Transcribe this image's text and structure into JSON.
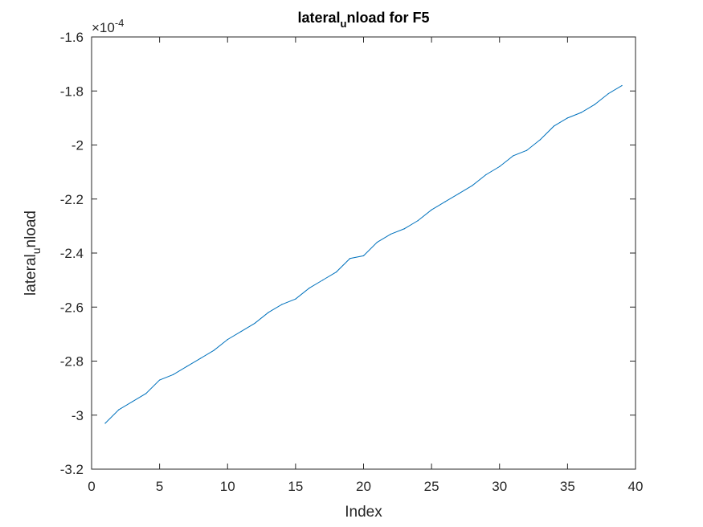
{
  "chart_data": {
    "type": "line",
    "title_main": "lateral",
    "title_sub": "u",
    "title_rest": "nload for F5",
    "xlabel": "Index",
    "ylabel_main": "lateral",
    "ylabel_sub": "u",
    "ylabel_rest": "nload",
    "exponent_base": "×10",
    "exponent_power": "-4",
    "xlim": [
      0,
      40
    ],
    "ylim": [
      -3.2,
      -1.6
    ],
    "xticks": [
      0,
      5,
      10,
      15,
      20,
      25,
      30,
      35,
      40
    ],
    "xtick_labels": [
      "0",
      "5",
      "10",
      "15",
      "20",
      "25",
      "30",
      "35",
      "40"
    ],
    "yticks": [
      -3.2,
      -3.0,
      -2.8,
      -2.6,
      -2.4,
      -2.2,
      -2.0,
      -1.8,
      -1.6
    ],
    "ytick_labels": [
      "-3.2",
      "-3",
      "-2.8",
      "-2.6",
      "-2.4",
      "-2.2",
      "-2",
      "-1.8",
      "-1.6"
    ],
    "grid": false,
    "line_color": "#0072BD",
    "series": [
      {
        "x": [
          1,
          2,
          3,
          4,
          5,
          6,
          7,
          8,
          9,
          10,
          11,
          12,
          13,
          14,
          15,
          16,
          17,
          18,
          19,
          20,
          21,
          22,
          23,
          24,
          25,
          26,
          27,
          28,
          29,
          30,
          31,
          32,
          33,
          34,
          35,
          36,
          37,
          38,
          39
        ],
        "values": [
          -3.03,
          -2.98,
          -2.95,
          -2.92,
          -2.87,
          -2.85,
          -2.82,
          -2.79,
          -2.76,
          -2.72,
          -2.69,
          -2.66,
          -2.62,
          -2.59,
          -2.57,
          -2.53,
          -2.5,
          -2.47,
          -2.42,
          -2.41,
          -2.36,
          -2.33,
          -2.31,
          -2.28,
          -2.24,
          -2.21,
          -2.18,
          -2.15,
          -2.11,
          -2.08,
          -2.04,
          -2.02,
          -1.98,
          -1.93,
          -1.9,
          -1.88,
          -1.85,
          -1.81,
          -1.78
        ]
      }
    ]
  }
}
